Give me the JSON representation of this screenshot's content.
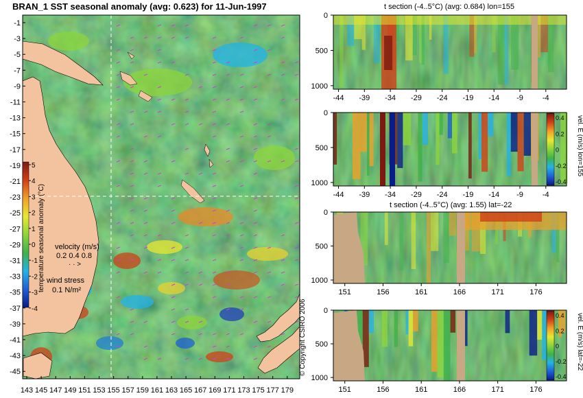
{
  "main_title": "BRAN_1 SST seasonal anomaly (avg: 0.623) for 11-Jun-1997",
  "copyright": "© Copyright CSIRO 2006",
  "colors": {
    "ocean_base": "#3fb24a",
    "land": "#f3c3a0",
    "panel_land": "#c8a884",
    "colormap": [
      "#0a1b8a",
      "#1f5fd4",
      "#23b3e8",
      "#3fb24a",
      "#8cd43c",
      "#e8e830",
      "#f0a028",
      "#d04018",
      "#7a1a10"
    ]
  },
  "map": {
    "y_ticks": [
      "-1",
      "-3",
      "-5",
      "-7",
      "-9",
      "-11",
      "-13",
      "-15",
      "-17",
      "-19",
      "-21",
      "-23",
      "-25",
      "-27",
      "-29",
      "-31",
      "-33",
      "-35",
      "-37",
      "-39",
      "-41",
      "-43",
      "-45"
    ],
    "x_ticks": [
      "143",
      "145",
      "147",
      "149",
      "151",
      "153",
      "155",
      "157",
      "159",
      "161",
      "163",
      "165",
      "167",
      "169",
      "171",
      "173",
      "175",
      "177",
      "179"
    ],
    "colorbar_ticks": [
      "5",
      "4",
      "3",
      "2",
      "1",
      "0",
      "-1",
      "-2",
      "-3",
      "-4"
    ],
    "colorbar_label": "temperature seasonal anomaly (°C)",
    "velocity_label": "velocity (m/s)",
    "velocity_scale": "0.2 0.4 0.8",
    "wind_label": "wind stress",
    "wind_scale": "0.1 N/m²"
  },
  "panels": [
    {
      "title": "t section (-4..5°C) (avg: 0.684) lon=155",
      "x_ticks": [
        "-44",
        "-39",
        "-34",
        "-29",
        "-24",
        "-19",
        "-14",
        "-9",
        "-4"
      ],
      "y_ticks": [
        "0",
        "500",
        "1000"
      ],
      "side_label": "",
      "colorbar_ticks": []
    },
    {
      "title": "",
      "x_ticks": [
        "-44",
        "-39",
        "-34",
        "-29",
        "-24",
        "-19",
        "-14",
        "-9",
        "-4"
      ],
      "y_ticks": [
        "0",
        "500",
        "1000"
      ],
      "side_label": "vel. E (m/s) lon=155",
      "colorbar_ticks": [
        "0.4",
        "0.2",
        "0",
        "-0.2",
        "-0.4"
      ]
    },
    {
      "title": "t section (-4..5°C) (avg: 1.55) lat=-22",
      "x_ticks": [
        "151",
        "156",
        "161",
        "166",
        "171",
        "176"
      ],
      "y_ticks": [
        "0",
        "500",
        "1000"
      ],
      "side_label": "",
      "colorbar_ticks": []
    },
    {
      "title": "",
      "x_ticks": [
        "151",
        "156",
        "161",
        "166",
        "171",
        "176"
      ],
      "y_ticks": [
        "0",
        "500",
        "1000"
      ],
      "side_label": "vel. E (m/s) lat=-22",
      "colorbar_ticks": [
        "0.4",
        "0.2",
        "0",
        "-0.2",
        "-0.4"
      ]
    }
  ],
  "chart_data": [
    {
      "type": "heatmap",
      "title": "BRAN_1 SST seasonal anomaly (avg: 0.623) for 11-Jun-1997",
      "xlabel": "",
      "ylabel": "",
      "xlim": [
        143,
        180
      ],
      "ylim": [
        -45,
        0
      ],
      "colorbar_label": "temperature seasonal anomaly (°C)",
      "colorbar_range": [
        -4,
        5
      ],
      "average": 0.623,
      "date": "11-Jun-1997"
    },
    {
      "type": "heatmap",
      "title": "t section (-4..5°C) (avg: 0.684) lon=155",
      "xlim": [
        -45,
        0
      ],
      "ylim": [
        0,
        1050
      ],
      "average": 0.684
    },
    {
      "type": "heatmap",
      "title": "",
      "xlim": [
        -45,
        0
      ],
      "ylim": [
        0,
        1050
      ],
      "colorbar_label": "vel. E (m/s) lon=155",
      "colorbar_range": [
        -0.4,
        0.4
      ]
    },
    {
      "type": "heatmap",
      "title": "t section (-4..5°C) (avg: 1.55) lat=-22",
      "xlim": [
        149,
        180
      ],
      "ylim": [
        0,
        1050
      ],
      "average": 1.55
    },
    {
      "type": "heatmap",
      "title": "",
      "xlim": [
        149,
        180
      ],
      "ylim": [
        0,
        1050
      ],
      "colorbar_label": "vel. E (m/s) lat=-22",
      "colorbar_range": [
        -0.4,
        0.4
      ]
    }
  ]
}
